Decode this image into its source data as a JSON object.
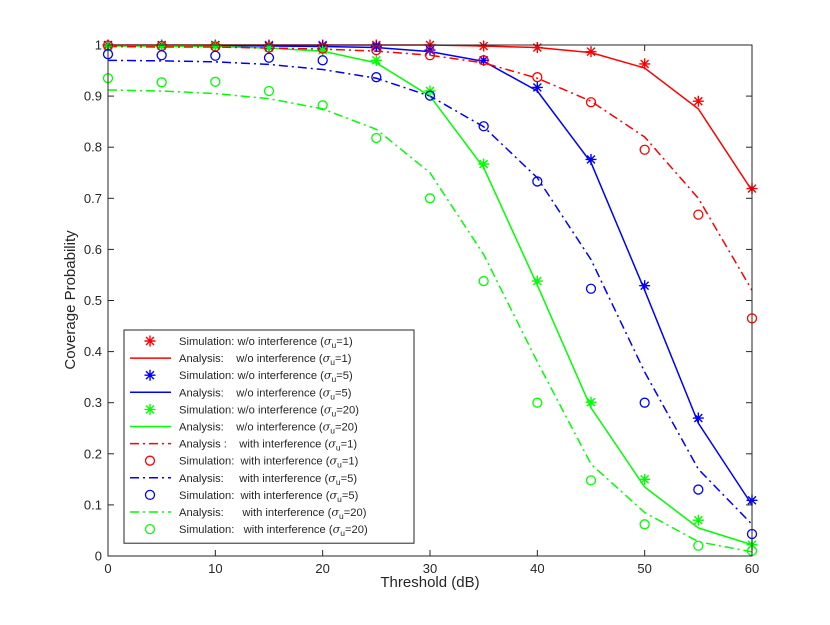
{
  "chart_data": {
    "type": "line",
    "title": "",
    "xlabel": "Threshold (dB)",
    "ylabel": "Coverage Probability",
    "xlim": [
      0,
      60
    ],
    "ylim": [
      0,
      1
    ],
    "xticks": [
      0,
      10,
      20,
      30,
      40,
      50,
      60
    ],
    "yticks": [
      0,
      0.1,
      0.2,
      0.3,
      0.4,
      0.5,
      0.6,
      0.7,
      0.8,
      0.9,
      1
    ],
    "xtick_labels": [
      "0",
      "10",
      "20",
      "30",
      "40",
      "50",
      "60"
    ],
    "ytick_labels": [
      "0",
      "0.1",
      "0.2",
      "0.3",
      "0.4",
      "0.5",
      "0.6",
      "0.7",
      "0.8",
      "0.9",
      "1"
    ],
    "legend_position": "bottom-left",
    "x": [
      0,
      5,
      10,
      15,
      20,
      25,
      30,
      35,
      40,
      45,
      50,
      55,
      60
    ],
    "series": [
      {
        "id": "sim-wo-1",
        "label_prefix": "Simulation: w/o interference (",
        "sub": "1",
        "color": "#ff0000",
        "style": "marker",
        "marker": "star",
        "values": [
          1.0,
          1.0,
          1.0,
          1.0,
          1.0,
          1.0,
          1.0,
          0.998,
          0.995,
          0.987,
          0.963,
          0.89,
          0.719
        ]
      },
      {
        "id": "ana-wo-1",
        "label_prefix": "Analysis:    w/o interference (",
        "sub": "1",
        "color": "#ff0000",
        "style": "solid",
        "values": [
          1.0,
          1.0,
          1.0,
          1.0,
          1.0,
          1.0,
          1.0,
          0.998,
          0.995,
          0.985,
          0.955,
          0.875,
          0.715
        ]
      },
      {
        "id": "sim-wo-5",
        "label_prefix": "Simulation: w/o interference (",
        "sub": "5",
        "color": "#0000ff",
        "style": "marker",
        "marker": "star",
        "values": [
          0.999,
          0.999,
          0.999,
          0.998,
          0.998,
          0.997,
          0.99,
          0.97,
          0.917,
          0.776,
          0.529,
          0.27,
          0.109
        ]
      },
      {
        "id": "ana-wo-5",
        "label_prefix": "Analysis:    w/o interference (",
        "sub": "5",
        "color": "#0000ff",
        "style": "solid",
        "values": [
          0.999,
          0.999,
          0.999,
          0.998,
          0.997,
          0.995,
          0.987,
          0.968,
          0.91,
          0.77,
          0.52,
          0.26,
          0.1
        ]
      },
      {
        "id": "sim-wo-20",
        "label_prefix": "Simulation: w/o interference (",
        "sub": "20",
        "color": "#00ff00",
        "style": "marker",
        "marker": "star",
        "values": [
          0.998,
          0.998,
          0.998,
          0.995,
          0.99,
          0.97,
          0.91,
          0.767,
          0.538,
          0.301,
          0.15,
          0.07,
          0.022
        ]
      },
      {
        "id": "ana-wo-20",
        "label_prefix": "Analysis:    w/o interference (",
        "sub": "20",
        "color": "#00ff00",
        "style": "solid",
        "values": [
          0.998,
          0.998,
          0.997,
          0.994,
          0.988,
          0.965,
          0.9,
          0.76,
          0.53,
          0.29,
          0.135,
          0.055,
          0.022
        ]
      },
      {
        "id": "ana-w-1",
        "label_prefix": "Analysis :    with interference (",
        "sub": "1",
        "color": "#ff0000",
        "style": "dashdot",
        "values": [
          0.997,
          0.996,
          0.996,
          0.994,
          0.992,
          0.988,
          0.98,
          0.965,
          0.935,
          0.89,
          0.82,
          0.7,
          0.52
        ]
      },
      {
        "id": "sim-w-1",
        "label_prefix": "Simulation:  with interference (",
        "sub": "1",
        "color": "#ff0000",
        "style": "marker",
        "marker": "circle",
        "values": [
          0.999,
          0.998,
          0.997,
          0.995,
          0.993,
          0.99,
          0.98,
          0.97,
          0.937,
          0.888,
          0.795,
          0.668,
          0.465
        ]
      },
      {
        "id": "ana-w-5",
        "label_prefix": "Analysis:     with interference (",
        "sub": "5",
        "color": "#0000ff",
        "style": "dashdot",
        "values": [
          0.97,
          0.969,
          0.967,
          0.962,
          0.952,
          0.935,
          0.9,
          0.84,
          0.74,
          0.58,
          0.36,
          0.17,
          0.062
        ]
      },
      {
        "id": "sim-w-5",
        "label_prefix": "Simulation:  with interference (",
        "sub": "5",
        "color": "#0000ff",
        "style": "marker",
        "marker": "circle",
        "values": [
          0.982,
          0.98,
          0.979,
          0.975,
          0.97,
          0.937,
          0.901,
          0.841,
          0.733,
          0.523,
          0.3,
          0.13,
          0.043
        ]
      },
      {
        "id": "ana-w-20",
        "label_prefix": "Analysis:      with interference (",
        "sub": "20",
        "color": "#00ff00",
        "style": "dashdot",
        "values": [
          0.912,
          0.91,
          0.905,
          0.895,
          0.875,
          0.835,
          0.75,
          0.59,
          0.38,
          0.18,
          0.085,
          0.028,
          0.008
        ]
      },
      {
        "id": "sim-w-20",
        "label_prefix": "Simulation:   with interference (",
        "sub": "20",
        "color": "#00ff00",
        "style": "marker",
        "marker": "circle",
        "values": [
          0.935,
          0.927,
          0.928,
          0.91,
          0.882,
          0.818,
          0.7,
          0.538,
          0.3,
          0.148,
          0.062,
          0.02,
          0.01
        ]
      }
    ]
  }
}
